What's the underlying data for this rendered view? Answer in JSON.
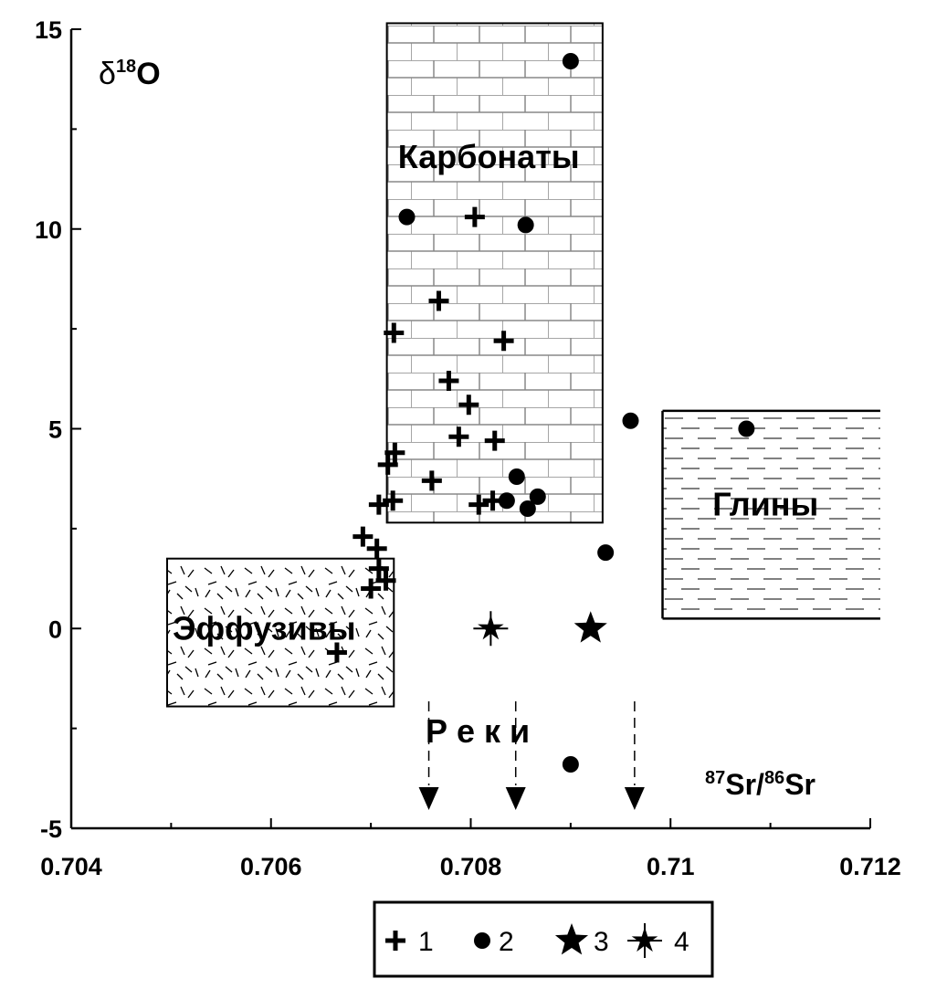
{
  "chart_data": {
    "type": "scatter",
    "xlabel": {
      "sup1": "87",
      "t1": "Sr/",
      "sup2": "86",
      "t2": "Sr"
    },
    "ylabel": {
      "prefix": "δ",
      "sup": "18",
      "main": "O"
    },
    "xlim": [
      0.704,
      0.712
    ],
    "ylim": [
      -5,
      15
    ],
    "x_tick_labels": [
      "0.704",
      "0.706",
      "0.708",
      "0.71",
      "0.712"
    ],
    "y_tick_labels": [
      "15",
      "10",
      "5",
      "0",
      "-5"
    ],
    "regions": [
      {
        "label": "Карбонаты",
        "pattern": "brick",
        "x": [
          0.70716,
          0.70932
        ],
        "y": [
          2.65,
          15.15
        ]
      },
      {
        "label": "Эффузивы",
        "pattern": "dashes",
        "x": [
          0.70496,
          0.70723
        ],
        "y": [
          -1.95,
          1.75
        ]
      },
      {
        "label": "Глины",
        "pattern": "lines",
        "x": [
          0.70992,
          0.7121
        ],
        "y": [
          0.25,
          5.45
        ]
      }
    ],
    "rivers": {
      "label": "Р е к и",
      "x": [
        0.70758,
        0.70845,
        0.70964
      ]
    },
    "series": [
      {
        "name": "1",
        "marker": "plus",
        "points": [
          [
            0.70804,
            10.3
          ],
          [
            0.70768,
            8.2
          ],
          [
            0.70723,
            7.4
          ],
          [
            0.70833,
            7.2
          ],
          [
            0.70778,
            6.2
          ],
          [
            0.70798,
            5.6
          ],
          [
            0.70788,
            4.8
          ],
          [
            0.70824,
            4.7
          ],
          [
            0.70724,
            4.4
          ],
          [
            0.70717,
            4.1
          ],
          [
            0.70761,
            3.7
          ],
          [
            0.70808,
            3.1
          ],
          [
            0.70822,
            3.2
          ],
          [
            0.70722,
            3.2
          ],
          [
            0.70708,
            3.1
          ],
          [
            0.70692,
            2.3
          ],
          [
            0.70706,
            2.0
          ],
          [
            0.70708,
            1.5
          ],
          [
            0.70715,
            1.2
          ],
          [
            0.707,
            1.0
          ],
          [
            0.70666,
            -0.6
          ]
        ]
      },
      {
        "name": "2",
        "marker": "circle",
        "points": [
          [
            0.709,
            14.2
          ],
          [
            0.70736,
            10.3
          ],
          [
            0.70855,
            10.1
          ],
          [
            0.70846,
            3.8
          ],
          [
            0.70836,
            3.2
          ],
          [
            0.70867,
            3.3
          ],
          [
            0.70857,
            3.0
          ],
          [
            0.7096,
            5.2
          ],
          [
            0.71076,
            5.0
          ],
          [
            0.70935,
            1.9
          ],
          [
            0.709,
            -3.4
          ]
        ]
      },
      {
        "name": "3",
        "marker": "star",
        "points": [
          [
            0.7092,
            0.0
          ]
        ]
      },
      {
        "name": "4",
        "marker": "asterisk",
        "points": [
          [
            0.7082,
            0.0
          ]
        ]
      }
    ],
    "legend": {
      "placement": "bottom",
      "items": [
        {
          "marker": "plus",
          "label": "1"
        },
        {
          "marker": "circle",
          "label": "2"
        },
        {
          "marker": "star",
          "label": "3"
        },
        {
          "marker": "asterisk",
          "label": "4"
        }
      ]
    }
  }
}
